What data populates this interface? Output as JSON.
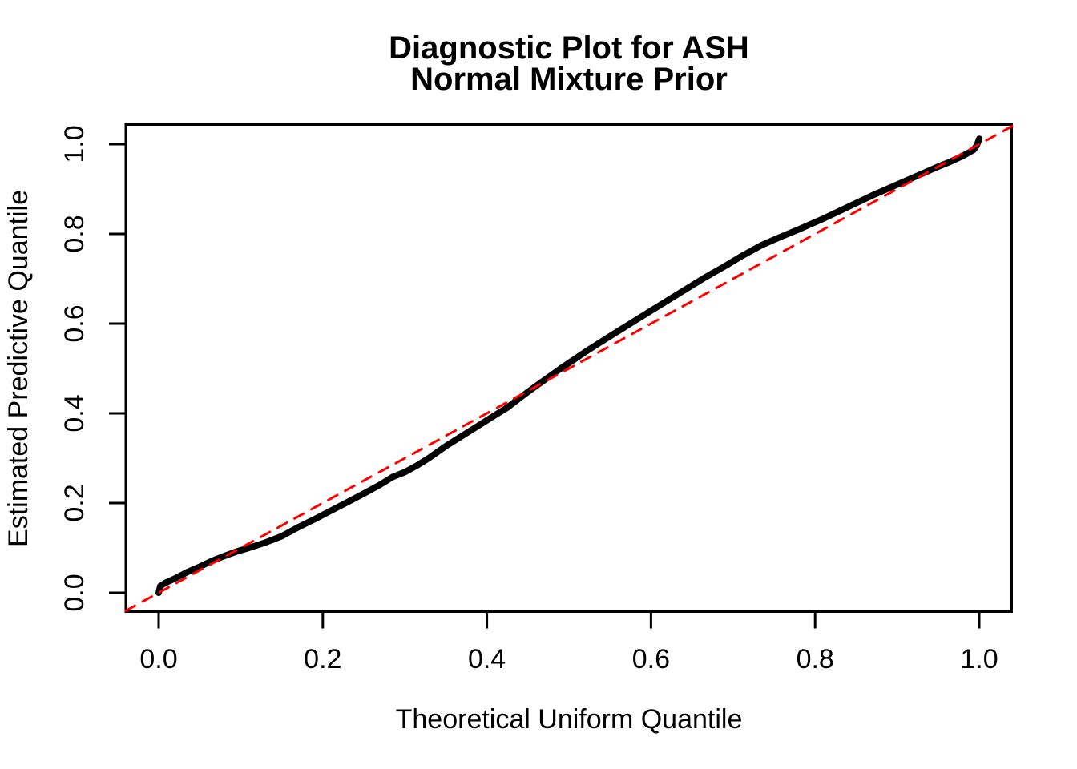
{
  "title": {
    "line1": "Diagnostic Plot for ASH",
    "line2": "Normal Mixture Prior"
  },
  "colors": {
    "background": "#FFFFFF",
    "text": "#000000",
    "curve": "#000000",
    "reference_line": "#FF0000",
    "axis": "#000000"
  },
  "chart_data": {
    "type": "line",
    "title": "Diagnostic Plot for ASH\nNormal Mixture Prior",
    "xlabel": "Theoretical Uniform Quantile",
    "ylabel": "Estimated Predictive Quantile",
    "xlim": [
      -0.04,
      1.04
    ],
    "ylim": [
      -0.04,
      1.04
    ],
    "grid": false,
    "legend": "none",
    "x_ticks": [
      0.0,
      0.2,
      0.4,
      0.6,
      0.8,
      1.0
    ],
    "x_tick_labels": [
      "0.0",
      "0.2",
      "0.4",
      "0.6",
      "0.8",
      "1.0"
    ],
    "y_ticks": [
      0.0,
      0.2,
      0.4,
      0.6,
      0.8,
      1.0
    ],
    "y_tick_labels": [
      "0.0",
      "0.2",
      "0.4",
      "0.6",
      "0.8",
      "1.0"
    ],
    "series": [
      {
        "name": "estimated-predictive-quantile-curve",
        "type": "line",
        "style": "solid",
        "color": "#000000",
        "stroke_width": 8,
        "points": [
          [
            0.0,
            0.0
          ],
          [
            0.002,
            0.015
          ],
          [
            0.008,
            0.022
          ],
          [
            0.02,
            0.032
          ],
          [
            0.035,
            0.046
          ],
          [
            0.05,
            0.058
          ],
          [
            0.065,
            0.071
          ],
          [
            0.08,
            0.082
          ],
          [
            0.095,
            0.092
          ],
          [
            0.11,
            0.1
          ],
          [
            0.13,
            0.112
          ],
          [
            0.15,
            0.126
          ],
          [
            0.17,
            0.146
          ],
          [
            0.19,
            0.164
          ],
          [
            0.21,
            0.183
          ],
          [
            0.23,
            0.202
          ],
          [
            0.25,
            0.221
          ],
          [
            0.27,
            0.241
          ],
          [
            0.285,
            0.258
          ],
          [
            0.3,
            0.269
          ],
          [
            0.315,
            0.284
          ],
          [
            0.33,
            0.301
          ],
          [
            0.35,
            0.327
          ],
          [
            0.37,
            0.35
          ],
          [
            0.39,
            0.373
          ],
          [
            0.41,
            0.396
          ],
          [
            0.425,
            0.413
          ],
          [
            0.445,
            0.441
          ],
          [
            0.46,
            0.461
          ],
          [
            0.49,
            0.5
          ],
          [
            0.52,
            0.537
          ],
          [
            0.55,
            0.572
          ],
          [
            0.58,
            0.606
          ],
          [
            0.61,
            0.64
          ],
          [
            0.64,
            0.674
          ],
          [
            0.665,
            0.702
          ],
          [
            0.69,
            0.728
          ],
          [
            0.71,
            0.75
          ],
          [
            0.735,
            0.775
          ],
          [
            0.755,
            0.791
          ],
          [
            0.78,
            0.81
          ],
          [
            0.81,
            0.834
          ],
          [
            0.84,
            0.86
          ],
          [
            0.87,
            0.886
          ],
          [
            0.9,
            0.91
          ],
          [
            0.93,
            0.934
          ],
          [
            0.95,
            0.95
          ],
          [
            0.965,
            0.961
          ],
          [
            0.98,
            0.974
          ],
          [
            0.993,
            0.987
          ],
          [
            0.997,
            0.997
          ],
          [
            1.0,
            1.012
          ]
        ]
      },
      {
        "name": "identity-reference-line",
        "type": "line",
        "style": "dashed",
        "color": "#FF0000",
        "stroke_width": 3,
        "dash": [
          13,
          11
        ],
        "points": [
          [
            -0.04,
            -0.04
          ],
          [
            1.04,
            1.04
          ]
        ]
      }
    ]
  }
}
